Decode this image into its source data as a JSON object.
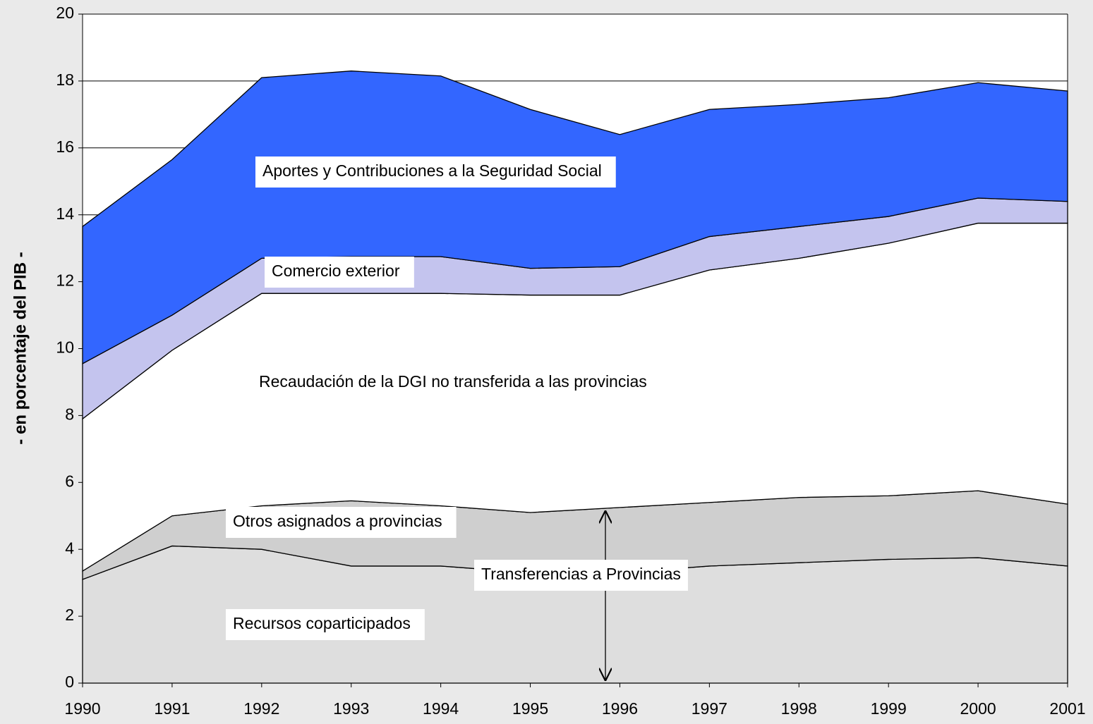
{
  "chart_data": {
    "type": "stacked-area",
    "ylabel": "- en porcentaje del PIB -",
    "annotation": "Transferencias a Provincias",
    "categories": [
      "1990",
      "1991",
      "1992",
      "1993",
      "1994",
      "1995",
      "1996",
      "1997",
      "1998",
      "1999",
      "2000",
      "2001"
    ],
    "series": [
      {
        "name": "Recursos coparticipados",
        "color": "#dedede",
        "values": [
          3.1,
          4.1,
          4.0,
          3.5,
          3.5,
          3.3,
          3.3,
          3.5,
          3.6,
          3.7,
          3.75,
          3.5
        ]
      },
      {
        "name": "Otros asignados a provincias",
        "color": "#cfcfcf",
        "values": [
          0.25,
          0.9,
          1.3,
          1.95,
          1.8,
          1.8,
          1.95,
          1.9,
          1.95,
          1.9,
          2.0,
          1.85
        ]
      },
      {
        "name": "Recaudación de la DGI no transferida a las provincias",
        "color": "#ffffff",
        "values": [
          4.55,
          4.95,
          6.35,
          6.2,
          6.35,
          6.5,
          6.35,
          6.95,
          7.15,
          7.55,
          8.0,
          8.4
        ]
      },
      {
        "name": "Comercio exterior",
        "color": "#c4c4ee",
        "values": [
          1.65,
          1.05,
          1.05,
          1.1,
          1.1,
          0.8,
          0.85,
          1.0,
          0.95,
          0.8,
          0.75,
          0.65
        ]
      },
      {
        "name": "Aportes y Contribuciones a la Seguridad Social",
        "color": "#3366ff",
        "values": [
          4.1,
          4.65,
          5.4,
          5.55,
          5.4,
          4.75,
          3.95,
          3.8,
          3.65,
          3.55,
          3.45,
          3.3
        ]
      }
    ],
    "ylim": [
      0,
      20
    ],
    "yticks": [
      0,
      2,
      4,
      6,
      8,
      10,
      12,
      14,
      16,
      18,
      20
    ],
    "grid": true
  }
}
